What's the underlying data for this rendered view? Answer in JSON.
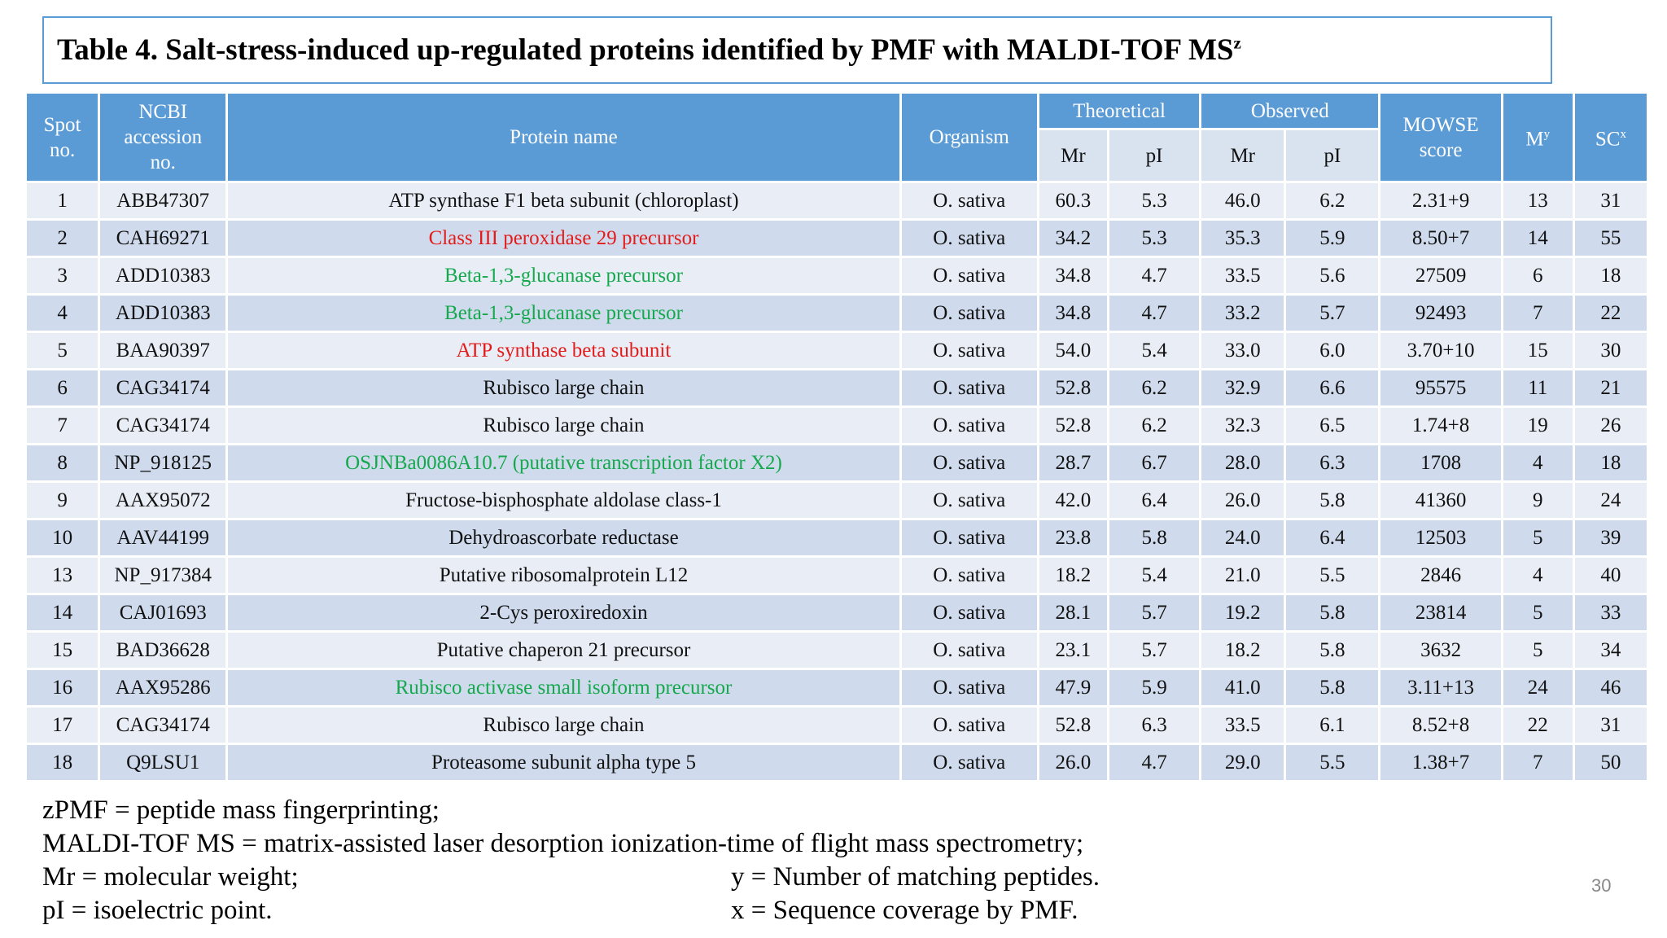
{
  "title": {
    "text": "Table 4. Salt-stress-induced up-regulated proteins identified by PMF with MALDI-TOF MS",
    "sup": "z"
  },
  "headers": {
    "spot": "Spot no.",
    "ncbi": "NCBI accession no.",
    "protein": "Protein name",
    "organism": "Organism",
    "theoretical": "Theoretical",
    "observed": "Observed",
    "mowse": "MOWSE score",
    "m": "M",
    "m_sup": "y",
    "sc": "SC",
    "sc_sup": "x",
    "th_mr": "Mr",
    "th_pi": "pI",
    "ob_mr": "Mr",
    "ob_pi": "pI"
  },
  "colors": {
    "header": "#5b9bd5",
    "red": "#e31b1b",
    "green": "#15a84d"
  },
  "rows": [
    {
      "spot": "1",
      "ncbi": "ABB47307",
      "protein": "ATP synthase F1 beta subunit (chloroplast)",
      "color": "black",
      "organism": "O. sativa",
      "th_mr": "60.3",
      "th_pi": "5.3",
      "ob_mr": "46.0",
      "ob_pi": "6.2",
      "mowse": "2.31+9",
      "m": "13",
      "sc": "31"
    },
    {
      "spot": "2",
      "ncbi": "CAH69271",
      "protein": "Class III peroxidase 29 precursor",
      "color": "red",
      "organism": "O. sativa",
      "th_mr": "34.2",
      "th_pi": "5.3",
      "ob_mr": "35.3",
      "ob_pi": "5.9",
      "mowse": "8.50+7",
      "m": "14",
      "sc": "55"
    },
    {
      "spot": "3",
      "ncbi": "ADD10383",
      "protein": "Beta-1,3-glucanase precursor",
      "color": "green",
      "organism": "O. sativa",
      "th_mr": "34.8",
      "th_pi": "4.7",
      "ob_mr": "33.5",
      "ob_pi": "5.6",
      "mowse": "27509",
      "m": "6",
      "sc": "18"
    },
    {
      "spot": "4",
      "ncbi": "ADD10383",
      "protein": "Beta-1,3-glucanase precursor",
      "color": "green",
      "organism": "O. sativa",
      "th_mr": "34.8",
      "th_pi": "4.7",
      "ob_mr": "33.2",
      "ob_pi": "5.7",
      "mowse": "92493",
      "m": "7",
      "sc": "22"
    },
    {
      "spot": "5",
      "ncbi": "BAA90397",
      "protein": "ATP synthase beta subunit",
      "color": "red",
      "organism": "O. sativa",
      "th_mr": "54.0",
      "th_pi": "5.4",
      "ob_mr": "33.0",
      "ob_pi": "6.0",
      "mowse": "3.70+10",
      "m": "15",
      "sc": "30"
    },
    {
      "spot": "6",
      "ncbi": "CAG34174",
      "protein": "Rubisco large chain",
      "color": "black",
      "organism": "O. sativa",
      "th_mr": "52.8",
      "th_pi": "6.2",
      "ob_mr": "32.9",
      "ob_pi": "6.6",
      "mowse": "95575",
      "m": "11",
      "sc": "21"
    },
    {
      "spot": "7",
      "ncbi": "CAG34174",
      "protein": "Rubisco large chain",
      "color": "black",
      "organism": "O. sativa",
      "th_mr": "52.8",
      "th_pi": "6.2",
      "ob_mr": "32.3",
      "ob_pi": "6.5",
      "mowse": "1.74+8",
      "m": "19",
      "sc": "26"
    },
    {
      "spot": "8",
      "ncbi": "NP_918125",
      "protein": "OSJNBa0086A10.7 (putative transcription factor X2)",
      "color": "green",
      "organism": "O. sativa",
      "th_mr": "28.7",
      "th_pi": "6.7",
      "ob_mr": "28.0",
      "ob_pi": "6.3",
      "mowse": "1708",
      "m": "4",
      "sc": "18"
    },
    {
      "spot": "9",
      "ncbi": "AAX95072",
      "protein": "Fructose-bisphosphate aldolase class-1",
      "color": "black",
      "organism": "O. sativa",
      "th_mr": "42.0",
      "th_pi": "6.4",
      "ob_mr": "26.0",
      "ob_pi": "5.8",
      "mowse": "41360",
      "m": "9",
      "sc": "24"
    },
    {
      "spot": "10",
      "ncbi": "AAV44199",
      "protein": "Dehydroascorbate reductase",
      "color": "black",
      "organism": "O. sativa",
      "th_mr": "23.8",
      "th_pi": "5.8",
      "ob_mr": "24.0",
      "ob_pi": "6.4",
      "mowse": "12503",
      "m": "5",
      "sc": "39"
    },
    {
      "spot": "13",
      "ncbi": "NP_917384",
      "protein": "Putative ribosomalprotein L12",
      "color": "black",
      "organism": "O. sativa",
      "th_mr": "18.2",
      "th_pi": "5.4",
      "ob_mr": "21.0",
      "ob_pi": "5.5",
      "mowse": "2846",
      "m": "4",
      "sc": "40"
    },
    {
      "spot": "14",
      "ncbi": "CAJ01693",
      "protein": "2-Cys peroxiredoxin",
      "color": "black",
      "organism": "O. sativa",
      "th_mr": "28.1",
      "th_pi": "5.7",
      "ob_mr": "19.2",
      "ob_pi": "5.8",
      "mowse": "23814",
      "m": "5",
      "sc": "33"
    },
    {
      "spot": "15",
      "ncbi": "BAD36628",
      "protein": "Putative chaperon 21 precursor",
      "color": "black",
      "organism": "O. sativa",
      "th_mr": "23.1",
      "th_pi": "5.7",
      "ob_mr": "18.2",
      "ob_pi": "5.8",
      "mowse": "3632",
      "m": "5",
      "sc": "34"
    },
    {
      "spot": "16",
      "ncbi": "AAX95286",
      "protein": "Rubisco activase small isoform precursor",
      "color": "green",
      "organism": "O. sativa",
      "th_mr": "47.9",
      "th_pi": "5.9",
      "ob_mr": "41.0",
      "ob_pi": "5.8",
      "mowse": "3.11+13",
      "m": "24",
      "sc": "46"
    },
    {
      "spot": "17",
      "ncbi": "CAG34174",
      "protein": "Rubisco large chain",
      "color": "black",
      "organism": "O. sativa",
      "th_mr": "52.8",
      "th_pi": "6.3",
      "ob_mr": "33.5",
      "ob_pi": "6.1",
      "mowse": "8.52+8",
      "m": "22",
      "sc": "31"
    },
    {
      "spot": "18",
      "ncbi": "Q9LSU1",
      "protein": "Proteasome subunit alpha type 5",
      "color": "black",
      "organism": "O. sativa",
      "th_mr": "26.0",
      "th_pi": "4.7",
      "ob_mr": "29.0",
      "ob_pi": "5.5",
      "mowse": "1.38+7",
      "m": "7",
      "sc": "50"
    }
  ],
  "footnotes": {
    "pmf": "zPMF =  peptide mass fingerprinting;",
    "maldi": "MALDI-TOF MS = matrix-assisted laser desorption ionization-time of flight mass spectrometry;",
    "mr": "Mr = molecular weight;",
    "pi": "pI = isoelectric point.",
    "y": "y = Number of matching peptides.",
    "x": "x = Sequence coverage by PMF."
  },
  "page_number": "30"
}
